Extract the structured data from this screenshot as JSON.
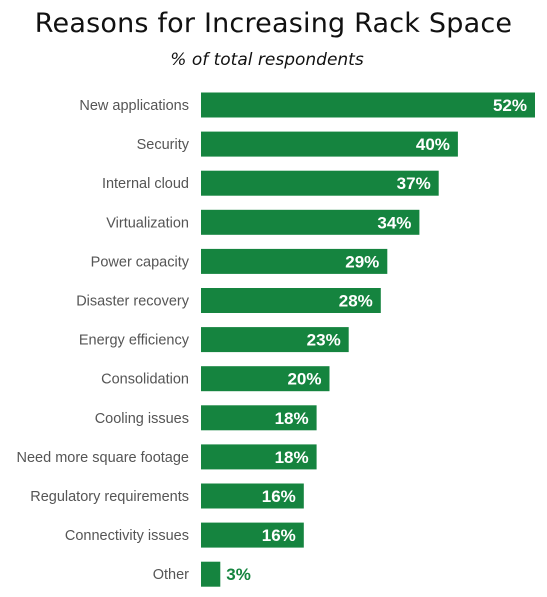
{
  "chart_data": {
    "type": "bar",
    "orientation": "horizontal",
    "title": "Reasons for Increasing Rack Space",
    "subtitle": "% of total respondents",
    "categories": [
      "New applications",
      "Security",
      "Internal cloud",
      "Virtualization",
      "Power capacity",
      "Disaster recovery",
      "Energy efficiency",
      "Consolidation",
      "Cooling issues",
      "Need more square footage",
      "Regulatory requirements",
      "Connectivity issues",
      "Other"
    ],
    "values": [
      52,
      40,
      37,
      34,
      29,
      28,
      23,
      20,
      18,
      18,
      16,
      16,
      3
    ],
    "value_labels": [
      "52%",
      "40%",
      "37%",
      "34%",
      "29%",
      "28%",
      "23%",
      "20%",
      "18%",
      "18%",
      "16%",
      "16%",
      "3%"
    ],
    "xlim": [
      0,
      52
    ],
    "bar_color": "#15843f",
    "label_inside_color": "#ffffff",
    "label_outside_color": "#15843f",
    "category_label_color": "#555555",
    "grid": false,
    "legend": "none"
  }
}
